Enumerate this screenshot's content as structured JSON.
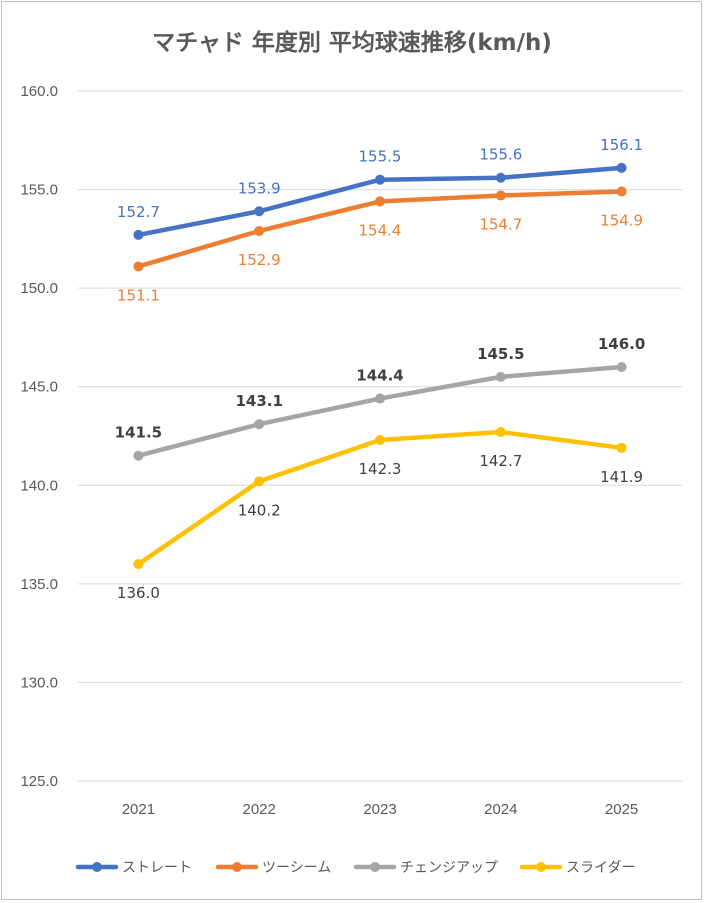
{
  "chart_data": {
    "type": "line",
    "title": "マチャド 年度別 平均球速推移(km/h)",
    "categories": [
      "2021",
      "2022",
      "2023",
      "2024",
      "2025"
    ],
    "ylim": [
      125.0,
      160.0
    ],
    "yticks": [
      "125.0",
      "130.0",
      "135.0",
      "140.0",
      "145.0",
      "150.0",
      "155.0",
      "160.0"
    ],
    "grid": true,
    "legend_position": "bottom",
    "series": [
      {
        "name": "ストレート",
        "color": "#4472C4",
        "values": [
          152.7,
          153.9,
          155.5,
          155.6,
          156.1
        ],
        "labels": [
          "152.7",
          "153.9",
          "155.5",
          "155.6",
          "156.1"
        ],
        "label_position": "above",
        "label_bold": false
      },
      {
        "name": "ツーシーム",
        "color": "#ED7D31",
        "values": [
          151.1,
          152.9,
          154.4,
          154.7,
          154.9
        ],
        "labels": [
          "151.1",
          "152.9",
          "154.4",
          "154.7",
          "154.9"
        ],
        "label_position": "below",
        "label_bold": false
      },
      {
        "name": "チェンジアップ",
        "color": "#A5A5A5",
        "values": [
          141.5,
          143.1,
          144.4,
          145.5,
          146.0
        ],
        "labels": [
          "141.5",
          "143.1",
          "144.4",
          "145.5",
          "146.0"
        ],
        "label_position": "above",
        "label_bold": true,
        "label_color": "#404040"
      },
      {
        "name": "スライダー",
        "color": "#FFC000",
        "values": [
          136.0,
          140.2,
          142.3,
          142.7,
          141.9
        ],
        "labels": [
          "136.0",
          "140.2",
          "142.3",
          "142.7",
          "141.9"
        ],
        "label_position": "below",
        "label_bold": false,
        "label_color": "#404040"
      }
    ]
  }
}
